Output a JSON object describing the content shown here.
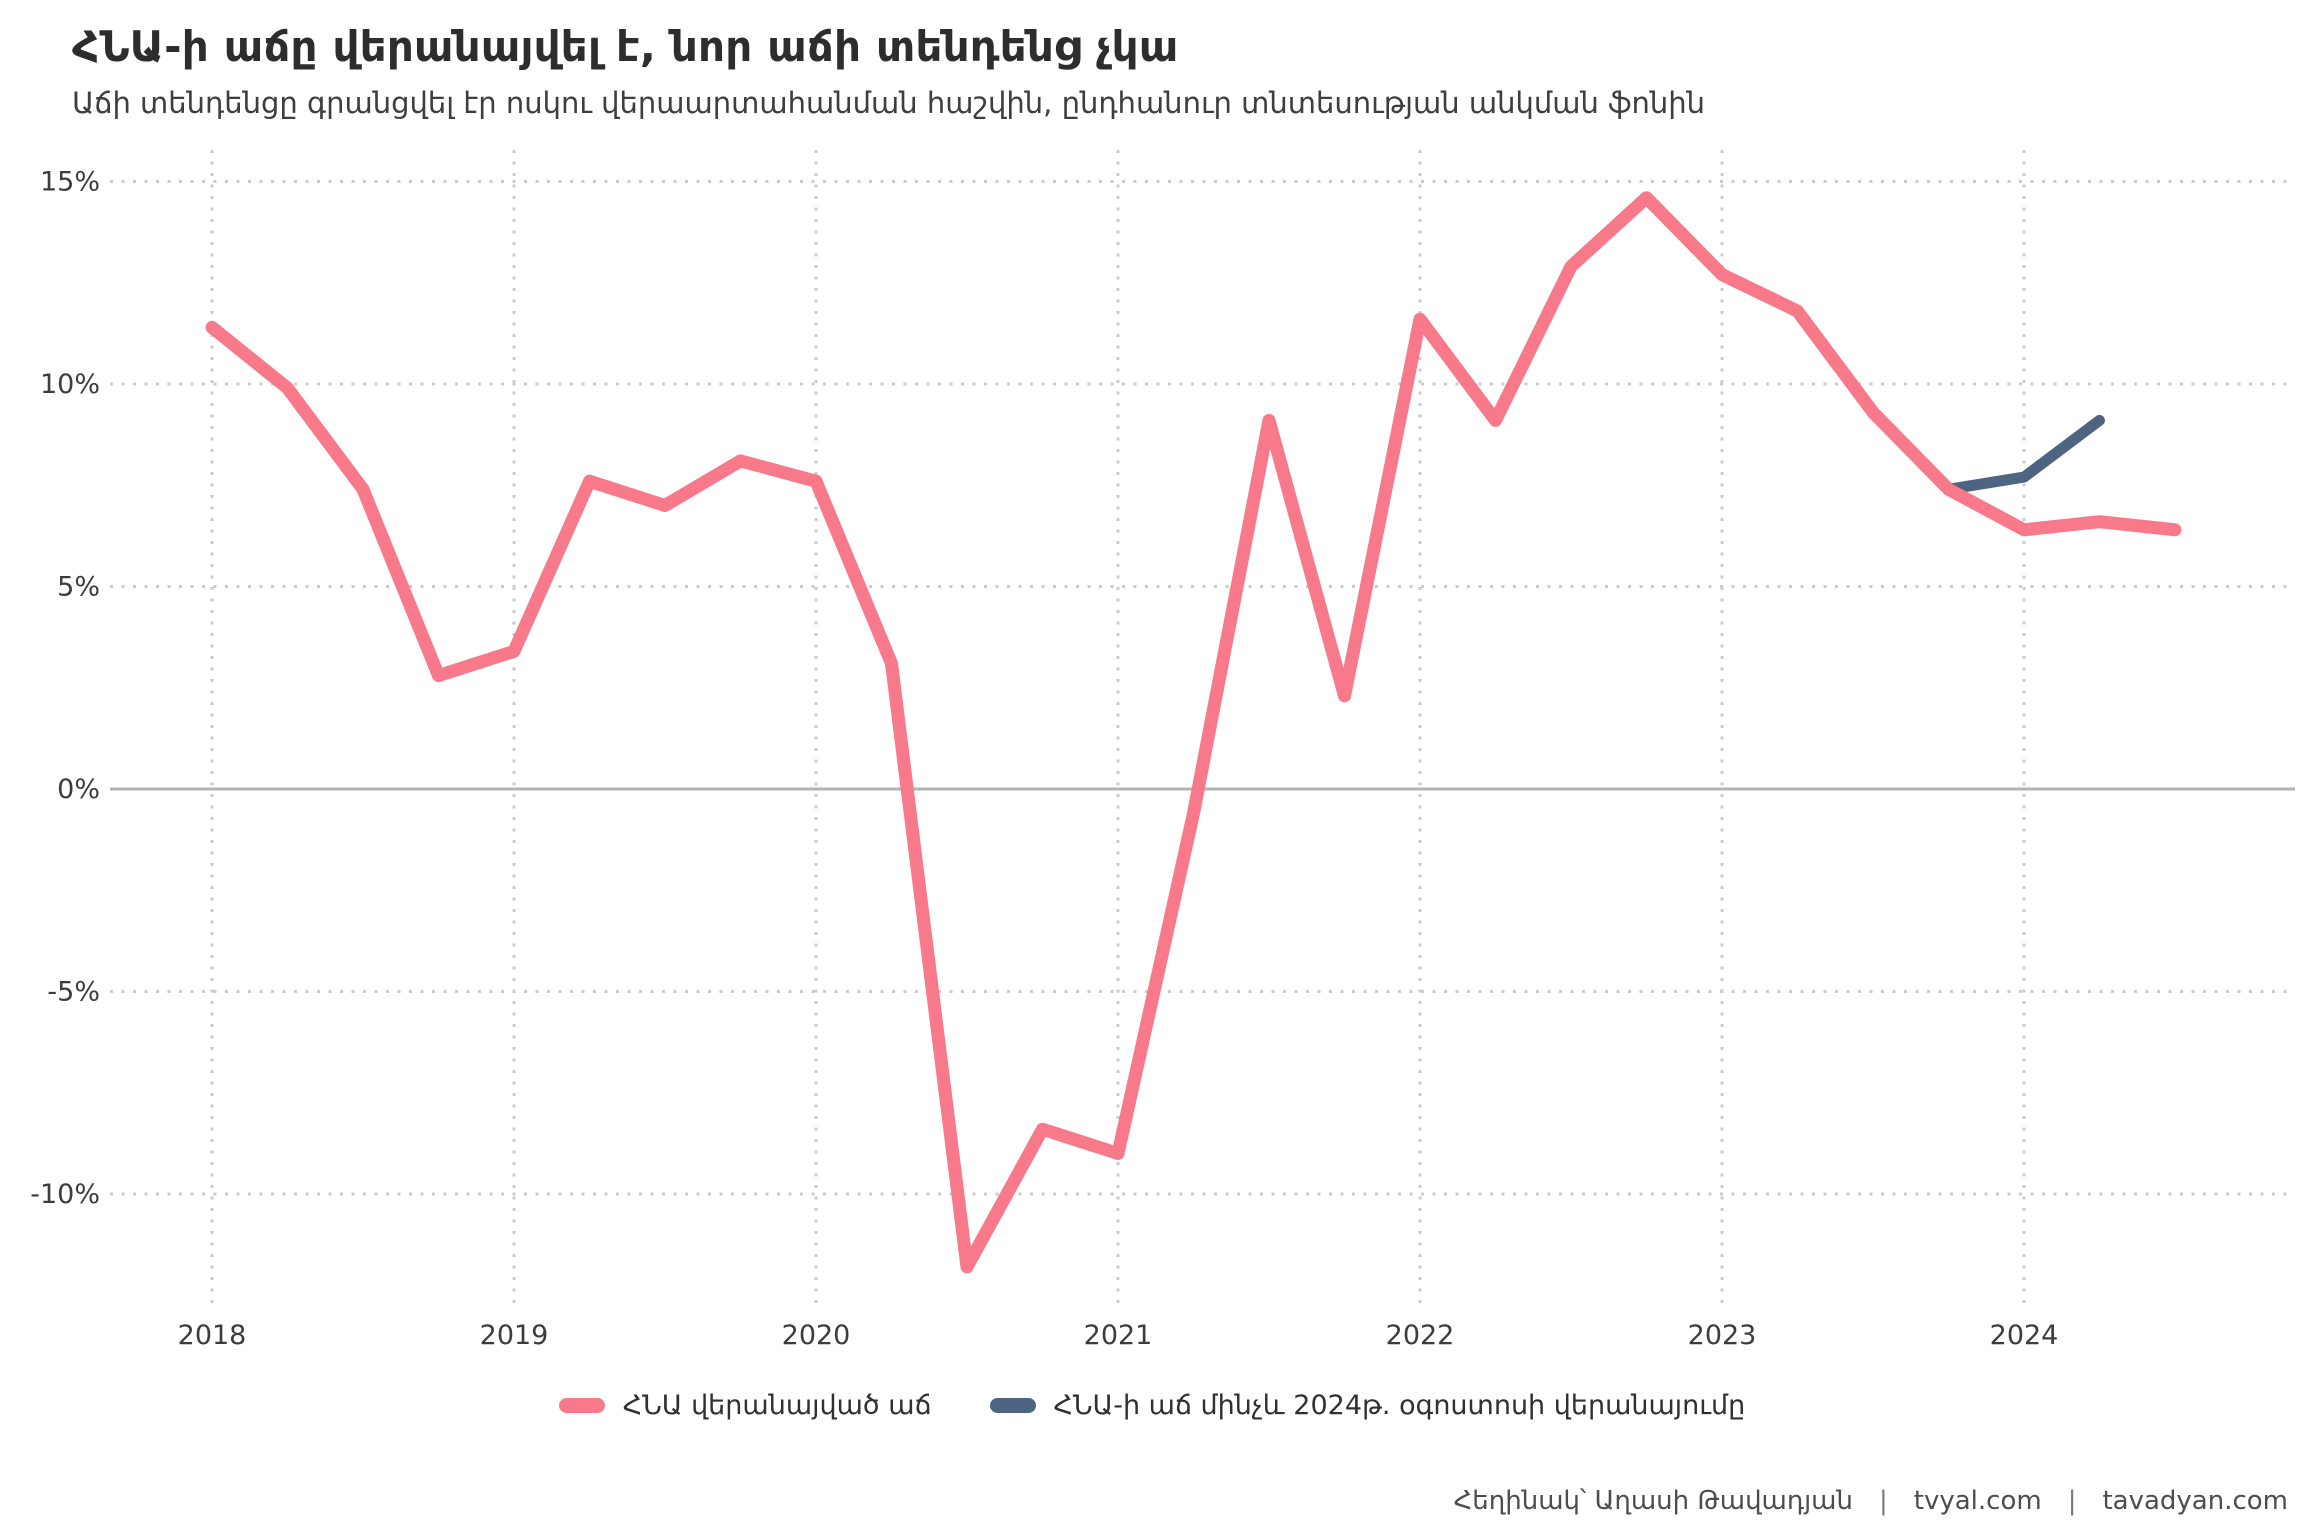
{
  "title": "ՀՆԱ-ի աճը վերանայվել է, նոր աճի տենդենց չկա",
  "subtitle": "Աճի տենդենցը գրանցվել էր ոսկու վերաարտահանման հաշվին, ընդհանուր տնտեսության անկման ֆոնին",
  "legend": [
    {
      "label": "ՀՆԱ վերանայված աճ",
      "color": "#F8798A"
    },
    {
      "label": "ՀՆԱ-ի աճ մինչև 2024թ. օգոստոսի վերանայումը",
      "color": "#4D6582"
    }
  ],
  "footer": {
    "author": "Հեղինակ՝ Աղասի Թավադյան",
    "sep": "|",
    "site1": "tvyal.com",
    "site2": "tavadyan.com"
  },
  "chart_data": {
    "type": "line",
    "title": "ՀՆԱ-ի աճը վերանայվել է, նոր աճի տենդենց չկա",
    "subtitle": "Աճի տենդենցը գրանցվել էր ոսկու վերաարտահանման հաշվին, ընդհանուր տնտեսության անկման ֆոնին",
    "x_unit": "quarter",
    "x_tick_labels": [
      "2018",
      "2019",
      "2020",
      "2021",
      "2022",
      "2023",
      "2024"
    ],
    "y_ticks": [
      15,
      10,
      5,
      0,
      -5,
      -10
    ],
    "y_tick_labels": [
      "15%",
      "10%",
      "5%",
      "0%",
      "-5%",
      "-10%"
    ],
    "ylim": [
      -13,
      16.5
    ],
    "grid": {
      "horizontal": "dotted",
      "vertical": "dotted",
      "zero_line": "solid"
    },
    "legend_position": "bottom-center",
    "series": [
      {
        "name": "ՀՆԱ վերանայված աճ",
        "color": "#F8798A",
        "start": "2018-Q1",
        "start_quarter_index": 0,
        "values": [
          11.4,
          9.9,
          7.4,
          2.8,
          3.4,
          7.6,
          7.0,
          8.1,
          7.6,
          3.1,
          -11.8,
          -8.4,
          -9.0,
          -0.6,
          9.1,
          2.3,
          11.6,
          9.1,
          12.9,
          14.6,
          12.7,
          11.8,
          9.3,
          7.4,
          6.4,
          6.6,
          6.4
        ]
      },
      {
        "name": "ՀՆԱ-ի աճ մինչև 2024թ. օգոստոսի վերանայումը",
        "color": "#4D6582",
        "start": "2023-Q4",
        "start_quarter_index": 23,
        "values": [
          7.4,
          7.7,
          9.1
        ]
      }
    ]
  }
}
